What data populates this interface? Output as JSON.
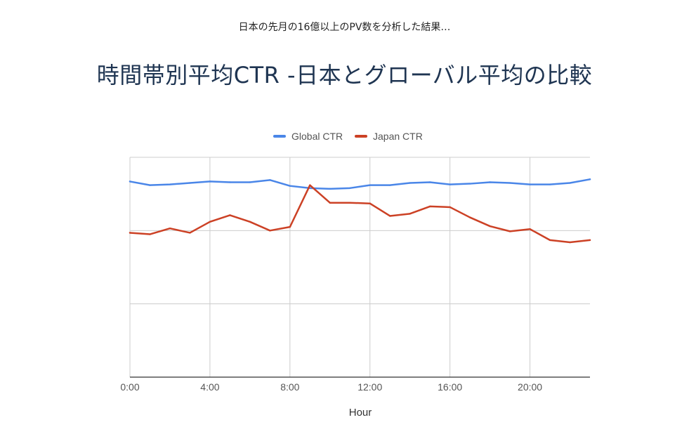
{
  "header": {
    "subtitle": "日本の先月の16億以上のPV数を分析した結果…",
    "title": "時間帯別平均CTR -日本とグローバル平均の比較"
  },
  "chart_data": {
    "type": "line",
    "xlabel": "Hour",
    "ylabel": "",
    "x": [
      0,
      1,
      2,
      3,
      4,
      5,
      6,
      7,
      8,
      9,
      10,
      11,
      12,
      13,
      14,
      15,
      16,
      17,
      18,
      19,
      20,
      21,
      22,
      23
    ],
    "x_ticks": [
      {
        "value": 0,
        "label": "0:00"
      },
      {
        "value": 4,
        "label": "4:00"
      },
      {
        "value": 8,
        "label": "8:00"
      },
      {
        "value": 12,
        "label": "12:00"
      },
      {
        "value": 16,
        "label": "16:00"
      },
      {
        "value": 20,
        "label": "20:00"
      }
    ],
    "xlim": [
      0,
      23
    ],
    "ylim": [
      0,
      3
    ],
    "y_gridlines": [
      1,
      2,
      3
    ],
    "y_tick_labels_visible": false,
    "grid": true,
    "legend_position": "top",
    "series": [
      {
        "name": "Global CTR",
        "color": "#4a86e8",
        "values": [
          2.67,
          2.62,
          2.63,
          2.65,
          2.67,
          2.66,
          2.66,
          2.69,
          2.61,
          2.58,
          2.57,
          2.58,
          2.62,
          2.62,
          2.65,
          2.66,
          2.63,
          2.64,
          2.66,
          2.65,
          2.63,
          2.63,
          2.65,
          2.7
        ]
      },
      {
        "name": "Japan CTR",
        "color": "#cc4125",
        "values": [
          1.97,
          1.95,
          2.03,
          1.97,
          2.12,
          2.21,
          2.12,
          2.0,
          2.05,
          2.62,
          2.38,
          2.38,
          2.37,
          2.2,
          2.23,
          2.33,
          2.32,
          2.18,
          2.06,
          1.99,
          2.02,
          1.87,
          1.84,
          1.87
        ]
      }
    ]
  }
}
